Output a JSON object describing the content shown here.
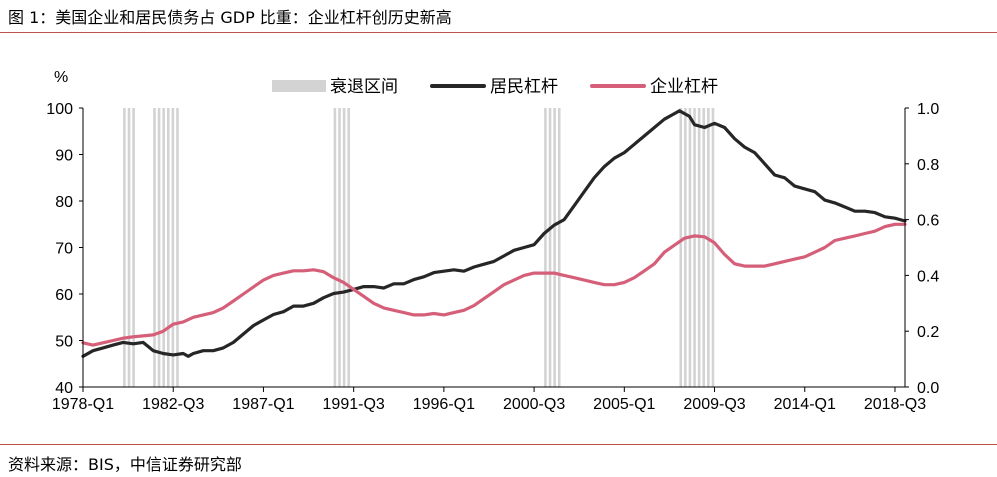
{
  "title": "图 1：美国企业和居民债务占 GDP 比重：企业杠杆创历史新高",
  "source": "资料来源：BIS，中信证券研究部",
  "colors": {
    "accent_rule": "#c0504d",
    "household": "#262626",
    "corporate": "#d55f79",
    "recession": "#d3d3d3"
  },
  "chart_data": {
    "type": "line",
    "y_unit_label": "%",
    "left_axis": {
      "ylim": [
        40,
        100
      ],
      "ticks": [
        "40",
        "50",
        "60",
        "70",
        "80",
        "90",
        "100"
      ]
    },
    "right_axis": {
      "ylim": [
        0.0,
        1.0
      ],
      "ticks": [
        "0.0",
        "0.2",
        "0.4",
        "0.6",
        "0.8",
        "1.0"
      ]
    },
    "x_range": [
      1978.0,
      2019.0
    ],
    "x_tick_labels": [
      {
        "label": "1978-Q1",
        "x": 1978.0
      },
      {
        "label": "1982-Q3",
        "x": 1982.5
      },
      {
        "label": "1987-Q1",
        "x": 1987.0
      },
      {
        "label": "1991-Q3",
        "x": 1991.5
      },
      {
        "label": "1996-Q1",
        "x": 1996.0
      },
      {
        "label": "2000-Q3",
        "x": 2000.5
      },
      {
        "label": "2005-Q1",
        "x": 2005.0
      },
      {
        "label": "2009-Q3",
        "x": 2009.5
      },
      {
        "label": "2014-Q1",
        "x": 2014.0
      },
      {
        "label": "2018-Q3",
        "x": 2018.5
      }
    ],
    "legend": [
      {
        "name": "衰退区间",
        "kind": "band",
        "color_key": "recession"
      },
      {
        "name": "居民杠杆",
        "kind": "line",
        "color_key": "household"
      },
      {
        "name": "企业杠杆",
        "kind": "line",
        "color_key": "corporate"
      }
    ],
    "legend_position": "top-center",
    "grid": false,
    "recessions": [
      {
        "start": 1980.0,
        "end": 1980.5
      },
      {
        "start": 1981.5,
        "end": 1982.75
      },
      {
        "start": 1990.5,
        "end": 1991.25
      },
      {
        "start": 2001.0,
        "end": 2001.75
      },
      {
        "start": 2007.75,
        "end": 2009.5
      }
    ],
    "series": [
      {
        "name": "居民杠杆",
        "axis": "right",
        "color_key": "household",
        "points": [
          [
            1978.0,
            0.11
          ],
          [
            1978.5,
            0.13
          ],
          [
            1979.0,
            0.14
          ],
          [
            1979.5,
            0.15
          ],
          [
            1980.0,
            0.16
          ],
          [
            1980.5,
            0.155
          ],
          [
            1981.0,
            0.16
          ],
          [
            1981.25,
            0.145
          ],
          [
            1981.5,
            0.13
          ],
          [
            1982.0,
            0.12
          ],
          [
            1982.5,
            0.115
          ],
          [
            1983.0,
            0.12
          ],
          [
            1983.25,
            0.11
          ],
          [
            1983.5,
            0.12
          ],
          [
            1984.0,
            0.13
          ],
          [
            1984.5,
            0.13
          ],
          [
            1985.0,
            0.14
          ],
          [
            1985.5,
            0.16
          ],
          [
            1986.0,
            0.19
          ],
          [
            1986.5,
            0.22
          ],
          [
            1987.0,
            0.24
          ],
          [
            1987.5,
            0.26
          ],
          [
            1988.0,
            0.27
          ],
          [
            1988.5,
            0.29
          ],
          [
            1989.0,
            0.29
          ],
          [
            1989.5,
            0.3
          ],
          [
            1990.0,
            0.32
          ],
          [
            1990.5,
            0.335
          ],
          [
            1991.0,
            0.34
          ],
          [
            1991.5,
            0.35
          ],
          [
            1992.0,
            0.36
          ],
          [
            1992.5,
            0.36
          ],
          [
            1993.0,
            0.355
          ],
          [
            1993.5,
            0.37
          ],
          [
            1994.0,
            0.37
          ],
          [
            1994.5,
            0.385
          ],
          [
            1995.0,
            0.395
          ],
          [
            1995.5,
            0.41
          ],
          [
            1996.0,
            0.415
          ],
          [
            1996.5,
            0.42
          ],
          [
            1997.0,
            0.415
          ],
          [
            1997.5,
            0.43
          ],
          [
            1998.0,
            0.44
          ],
          [
            1998.5,
            0.45
          ],
          [
            1999.0,
            0.47
          ],
          [
            1999.5,
            0.49
          ],
          [
            2000.0,
            0.5
          ],
          [
            2000.5,
            0.51
          ],
          [
            2001.0,
            0.55
          ],
          [
            2001.5,
            0.58
          ],
          [
            2002.0,
            0.6
          ],
          [
            2002.5,
            0.65
          ],
          [
            2003.0,
            0.7
          ],
          [
            2003.5,
            0.75
          ],
          [
            2004.0,
            0.79
          ],
          [
            2004.5,
            0.82
          ],
          [
            2005.0,
            0.84
          ],
          [
            2005.5,
            0.87
          ],
          [
            2006.0,
            0.9
          ],
          [
            2006.5,
            0.93
          ],
          [
            2007.0,
            0.96
          ],
          [
            2007.5,
            0.98
          ],
          [
            2007.75,
            0.99
          ],
          [
            2008.0,
            0.98
          ],
          [
            2008.25,
            0.97
          ],
          [
            2008.5,
            0.94
          ],
          [
            2009.0,
            0.93
          ],
          [
            2009.5,
            0.945
          ],
          [
            2010.0,
            0.93
          ],
          [
            2010.5,
            0.89
          ],
          [
            2011.0,
            0.86
          ],
          [
            2011.5,
            0.84
          ],
          [
            2012.0,
            0.8
          ],
          [
            2012.5,
            0.76
          ],
          [
            2013.0,
            0.75
          ],
          [
            2013.5,
            0.72
          ],
          [
            2014.0,
            0.71
          ],
          [
            2014.5,
            0.7
          ],
          [
            2015.0,
            0.67
          ],
          [
            2015.5,
            0.66
          ],
          [
            2016.0,
            0.645
          ],
          [
            2016.5,
            0.63
          ],
          [
            2017.0,
            0.63
          ],
          [
            2017.5,
            0.625
          ],
          [
            2018.0,
            0.61
          ],
          [
            2018.5,
            0.605
          ],
          [
            2019.0,
            0.595
          ]
        ]
      },
      {
        "name": "企业杠杆",
        "axis": "left",
        "color_key": "corporate",
        "points": [
          [
            1978.0,
            49.5
          ],
          [
            1978.5,
            49.0
          ],
          [
            1979.0,
            49.5
          ],
          [
            1979.5,
            50.0
          ],
          [
            1980.0,
            50.5
          ],
          [
            1980.5,
            50.8
          ],
          [
            1981.0,
            51.0
          ],
          [
            1981.5,
            51.2
          ],
          [
            1982.0,
            52.0
          ],
          [
            1982.5,
            53.5
          ],
          [
            1983.0,
            54.0
          ],
          [
            1983.5,
            55.0
          ],
          [
            1984.0,
            55.5
          ],
          [
            1984.5,
            56.0
          ],
          [
            1985.0,
            57.0
          ],
          [
            1985.5,
            58.5
          ],
          [
            1986.0,
            60.0
          ],
          [
            1986.5,
            61.5
          ],
          [
            1987.0,
            63.0
          ],
          [
            1987.5,
            64.0
          ],
          [
            1988.0,
            64.5
          ],
          [
            1988.5,
            65.0
          ],
          [
            1989.0,
            65.0
          ],
          [
            1989.5,
            65.2
          ],
          [
            1990.0,
            64.8
          ],
          [
            1990.5,
            63.5
          ],
          [
            1991.0,
            62.5
          ],
          [
            1991.5,
            61.0
          ],
          [
            1992.0,
            59.5
          ],
          [
            1992.5,
            58.0
          ],
          [
            1993.0,
            57.0
          ],
          [
            1993.5,
            56.5
          ],
          [
            1994.0,
            56.0
          ],
          [
            1994.5,
            55.5
          ],
          [
            1995.0,
            55.5
          ],
          [
            1995.5,
            55.8
          ],
          [
            1996.0,
            55.5
          ],
          [
            1996.5,
            56.0
          ],
          [
            1997.0,
            56.5
          ],
          [
            1997.5,
            57.5
          ],
          [
            1998.0,
            59.0
          ],
          [
            1998.5,
            60.5
          ],
          [
            1999.0,
            62.0
          ],
          [
            1999.5,
            63.0
          ],
          [
            2000.0,
            64.0
          ],
          [
            2000.5,
            64.5
          ],
          [
            2001.0,
            64.5
          ],
          [
            2001.5,
            64.5
          ],
          [
            2002.0,
            64.0
          ],
          [
            2002.5,
            63.5
          ],
          [
            2003.0,
            63.0
          ],
          [
            2003.5,
            62.5
          ],
          [
            2004.0,
            62.0
          ],
          [
            2004.5,
            62.0
          ],
          [
            2005.0,
            62.5
          ],
          [
            2005.5,
            63.5
          ],
          [
            2006.0,
            65.0
          ],
          [
            2006.5,
            66.5
          ],
          [
            2007.0,
            69.0
          ],
          [
            2007.5,
            70.5
          ],
          [
            2008.0,
            72.0
          ],
          [
            2008.5,
            72.5
          ],
          [
            2009.0,
            72.3
          ],
          [
            2009.5,
            71.0
          ],
          [
            2010.0,
            68.5
          ],
          [
            2010.5,
            66.5
          ],
          [
            2011.0,
            66.0
          ],
          [
            2011.5,
            66.0
          ],
          [
            2012.0,
            66.0
          ],
          [
            2012.5,
            66.5
          ],
          [
            2013.0,
            67.0
          ],
          [
            2013.5,
            67.5
          ],
          [
            2014.0,
            68.0
          ],
          [
            2014.5,
            69.0
          ],
          [
            2015.0,
            70.0
          ],
          [
            2015.5,
            71.5
          ],
          [
            2016.0,
            72.0
          ],
          [
            2016.5,
            72.5
          ],
          [
            2017.0,
            73.0
          ],
          [
            2017.5,
            73.5
          ],
          [
            2018.0,
            74.5
          ],
          [
            2018.5,
            75.0
          ],
          [
            2019.0,
            75.0
          ]
        ]
      }
    ]
  }
}
